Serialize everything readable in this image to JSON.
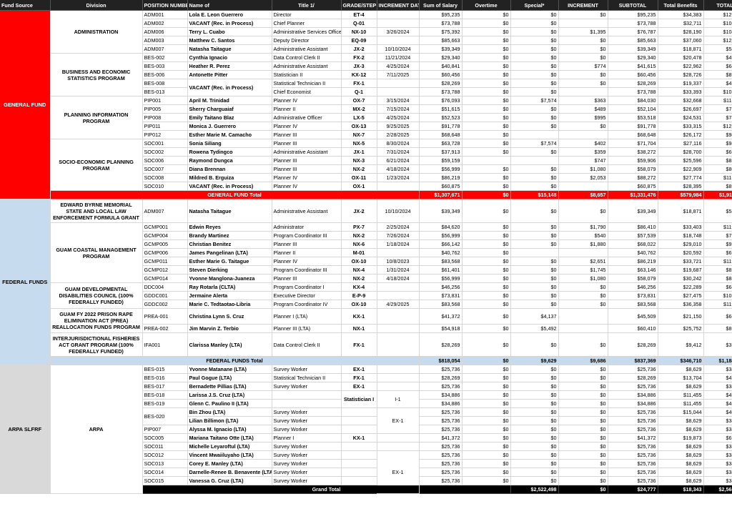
{
  "headers": {
    "fund_source": "Fund Source",
    "division": "Division",
    "position_number": "POSITION NUMBER",
    "name": "Name of",
    "title": "Title 1/",
    "grade_step": "GRADE/STEP",
    "increment_date": "INCREMENT DATE",
    "sum_salary": "Sum of Salary",
    "overtime": "Overtime",
    "special": "Special*",
    "increment": "INCREMENT",
    "subtotal": "SUBTOTAL",
    "total_benefits": "Total Benefits",
    "total": "TOTAL"
  },
  "funds": {
    "general": "GENERAL FUND",
    "federal": "FEDERAL FUNDS",
    "arpa": "ARPA SLFRF"
  },
  "divisions": {
    "admin": "ADMINISTRATION",
    "bes": "BUSINESS AND ECONOMIC STATISTICS PROGRAM",
    "pip": "PLANNING INFORMATION PROGRAM",
    "soc": "SOCIO-ECONOMIC PLANNING PROGRAM",
    "byrne": "EDWARD BYRNE MEMORIAL STATE AND LOCAL LAW ENFORCEMENT FORMULA GRANT",
    "gcmp": "GUAM COASTAL MANAGEMENT PROGRAM",
    "gddc": "GUAM DEVELOPMENTAL DISABILITIES COUNCIL (100% FEDERALLY FUNDED)",
    "prea": "GUAM FY 2022 PRISON RAPE ELIMINATION ACT (PREA) REALLOCATION FUNDS PROGRAM",
    "ifa": "INTERJURISDICTIONAL FISHERIES ACT GRANT PROGRAM (100% FEDERALLY FUNDED)",
    "arpa": "ARPA"
  },
  "merged": {
    "vacant_bes": "VACANT (Rec. in Process)",
    "statistician_i": "Statistician I",
    "grade_i1": "I-1",
    "grade_ex1_a": "EX-1",
    "grade_ex1_b": "EX-1"
  },
  "rows": [
    [
      "ADM001",
      "Lola E. Leon Guerrero",
      "Director",
      "ET-4",
      "",
      "$95,235",
      "$0",
      "$0",
      "$0",
      "$95,235",
      "$34,383",
      "$129,618"
    ],
    [
      "ADM002",
      "VACANT (Rec. in Process)",
      "Chief Planner",
      "Q-01",
      "",
      "$73,788",
      "$0",
      "$0",
      "",
      "$73,788",
      "$32,711",
      "$106,499"
    ],
    [
      "ADM006",
      "Terry L. Cuabo",
      "Administrative Services Officer",
      "NX-10",
      "3/26/2024",
      "$75,392",
      "$0",
      "$0",
      "$1,395",
      "$76,787",
      "$28,190",
      "$104,977"
    ],
    [
      "ADM003",
      "Matthew C. Santos",
      "Deputy Director",
      "EQ-09",
      "",
      "$85,663",
      "$0",
      "$0",
      "$0",
      "$85,663",
      "$37,060",
      "$122,723"
    ],
    [
      "ADM007",
      "Natasha Taitague",
      "Administrative Assistant",
      "JX-2",
      "10/10/2024",
      "$39,349",
      "$0",
      "$0",
      "$0",
      "$39,349",
      "$18,871",
      "$58,220"
    ],
    [
      "BES-002",
      "Cynthia Ignacio",
      "Data Control Clerk II",
      "FX-2",
      "11/21/2024",
      "$29,340",
      "$0",
      "$0",
      "$0",
      "$29,340",
      "$20,478",
      "$49,818"
    ],
    [
      "BES-003",
      "Heather R. Perez",
      "Administrative Assistant",
      "JX-3",
      "4/25/2024",
      "$40,841",
      "$0",
      "$0",
      "$774",
      "$41,615",
      "$22,962",
      "$64,577"
    ],
    [
      "BES-006",
      "Antonette Pitter",
      "Statistician II",
      "KX-12",
      "7/11/2025",
      "$60,456",
      "$0",
      "$0",
      "$0",
      "$60,456",
      "$28,726",
      "$89,182"
    ],
    [
      "BES-008",
      "",
      "Statistical Technician II",
      "FX-1",
      "",
      "$28,269",
      "$0",
      "$0",
      "$0",
      "$28,269",
      "$19,337",
      "$47,606"
    ],
    [
      "BES-013",
      "",
      "Chief Economist",
      "Q-1",
      "",
      "$73,788",
      "$0",
      "$0",
      "",
      "$73,788",
      "$33,393",
      "$107,181"
    ],
    [
      "PIP001",
      "April M. Trinidad",
      "Planner IV",
      "OX-7",
      "3/15/2024",
      "$76,093",
      "$0",
      "$7,574",
      "$363",
      "$84,030",
      "$32,668",
      "$116,698"
    ],
    [
      "PIP005",
      "Sherry Charguaiaf",
      "Planner II",
      "MX-2",
      "7/15/2024",
      "$51,615",
      "$0",
      "$0",
      "$489",
      "$52,104",
      "$26,697",
      "$78,801"
    ],
    [
      "PIP008",
      "Emily Taitano Blaz",
      "Administrative Officer",
      "LX-5",
      "4/25/2024",
      "$52,523",
      "$0",
      "$0",
      "$995",
      "$53,518",
      "$24,531",
      "$78,049"
    ],
    [
      "PIP011",
      "Monica J. Guerrero",
      "Planner IV",
      "OX-13",
      "9/25/2025",
      "$91,778",
      "$0",
      "$0",
      "$0",
      "$91,778",
      "$33,315",
      "$125,093"
    ],
    [
      "PIP012",
      "Esther Marie M. Camacho",
      "Planner III",
      "NX-7",
      "2/28/2025",
      "$68,648",
      "$0",
      "",
      "",
      "$68,648",
      "$26,172",
      "$94,820"
    ],
    [
      "SOC001",
      "Sonia Siliang",
      "Planner III",
      "NX-5",
      "8/30/2024",
      "$63,728",
      "$0",
      "$7,574",
      "$402",
      "$71,704",
      "$27,116",
      "$98,820"
    ],
    [
      "SOC002",
      "Rowena Tydingco",
      "Administrative Assistant",
      "JX-1",
      "7/31/2024",
      "$37,913",
      "$0",
      "$0",
      "$359",
      "$38,272",
      "$28,700",
      "$66,972"
    ],
    [
      "SOC006",
      "Raymond Dungca",
      "Planner III",
      "NX-3",
      "6/21/2024",
      "$59,159",
      "",
      "",
      "$747",
      "$59,906",
      "$25,596",
      "$85,502"
    ],
    [
      "SOC007",
      "Diana Brennan",
      "Planner III",
      "NX-2",
      "4/18/2024",
      "$56,999",
      "$0",
      "$0",
      "$1,080",
      "$58,079",
      "$22,909",
      "$80,988"
    ],
    [
      "SOC008",
      "Mildred B. Erguiza",
      "Planner IV",
      "OX-11",
      "1/23/2024",
      "$86,219",
      "$0",
      "$0",
      "$2,053",
      "$88,272",
      "$27,774",
      "$116,046"
    ],
    [
      "SOC010",
      "VACANT (Rec. in Process)",
      "Planner IV",
      "OX-1",
      "",
      "$60,875",
      "$0",
      "$0",
      "",
      "$60,875",
      "$28,395",
      "$89,270"
    ],
    [
      "ADM007",
      "Natasha Taitague",
      "Administrative Assistant",
      "JX-2",
      "10/10/2024",
      "$39,349",
      "$0",
      "$0",
      "$0",
      "$39,349",
      "$18,871",
      "$58,220"
    ],
    [
      "GCMP001",
      "Edwin Reyes",
      "Administrator",
      "PX-7",
      "2/25/2024",
      "$84,620",
      "$0",
      "$0",
      "$1,790",
      "$86,410",
      "$33,403",
      "$119,813"
    ],
    [
      "GCMP004",
      "Brandy Martinez",
      "Program Coordinator III",
      "NX-2",
      "7/26/2024",
      "$56,999",
      "$0",
      "$0",
      "$540",
      "$57,539",
      "$18,748",
      "$76,287"
    ],
    [
      "GCMP005",
      "Christian Benitez",
      "Planner III",
      "NX-6",
      "1/18/2024",
      "$66,142",
      "$0",
      "$0",
      "$1,880",
      "$68,022",
      "$29,010",
      "$97,032"
    ],
    [
      "GCMP006",
      "James Pangelinan (LTA)",
      "Planner II",
      "M-01",
      "",
      "$40,762",
      "$0",
      "",
      "",
      "$40,762",
      "$20,592",
      "$61,354"
    ],
    [
      "GCMP011",
      "Esther Marie G. Taitague",
      "Planner IV",
      "OX-10",
      "10/8/2023",
      "$83,568",
      "$0",
      "$0",
      "$2,651",
      "$86,219",
      "$33,721",
      "$119,940"
    ],
    [
      "GCMP012",
      "Steven Dierking",
      "Program Coordinator III",
      "NX-4",
      "1/31/2024",
      "$61,401",
      "$0",
      "$0",
      "$1,745",
      "$63,146",
      "$19,687",
      "$82,833"
    ],
    [
      "GCMP014",
      "Yvonne Manglona-Juaneza",
      "Planner III",
      "NX-2",
      "4/18/2024",
      "$56,999",
      "$0",
      "$0",
      "$1,080",
      "$58,079",
      "$30,242",
      "$88,321"
    ],
    [
      "DDC004",
      "Ray Rotarla (CLTA)",
      "Program Coordinator I",
      "KX-4",
      "",
      "$46,256",
      "$0",
      "$0",
      "$0",
      "$46,256",
      "$22,289",
      "$68,545"
    ],
    [
      "GDDC001",
      "Jermaine Alerta",
      "Executive Director",
      "E-P-9",
      "",
      "$73,831",
      "$0",
      "$0",
      "$0",
      "$73,831",
      "$27,475",
      "$101,306"
    ],
    [
      "GDDC002",
      "Marie C. Tedtaotao-Libria",
      "Program Coordinator IV",
      "OX-10",
      "4/29/2025",
      "$83,568",
      "$0",
      "$0",
      "$0",
      "$83,568",
      "$36,358",
      "$119,926"
    ],
    [
      "PREA-001",
      "Christina Lynn S. Cruz",
      "Planner I (LTA)",
      "KX-1",
      "",
      "$41,372",
      "$0",
      "$4,137",
      "",
      "$45,509",
      "$21,150",
      "$66,659"
    ],
    [
      "PREA-002",
      "Jim Marvin Z. Terbio",
      "Planner III (LTA)",
      "NX-1",
      "",
      "$54,918",
      "$0",
      "$5,492",
      "",
      "$60,410",
      "$25,752",
      "$86,162"
    ],
    [
      "IFA001",
      "Clarissa Manley (LTA)",
      "Data Control Clerk II",
      "FX-1",
      "",
      "$28,269",
      "$0",
      "$0",
      "$0",
      "$28,269",
      "$9,412",
      "$37,681"
    ],
    [
      "BES-015",
      "Yvonne Matanane (LTA)",
      "Survey Worker",
      "EX-1",
      "",
      "$25,736",
      "$0",
      "$0",
      "$0",
      "$25,736",
      "$8,629",
      "$34,365"
    ],
    [
      "BES-016",
      "Paul Gogue (LTA)",
      "Statistical Technician II",
      "FX-1",
      "",
      "$28,269",
      "$0",
      "$0",
      "$0",
      "$28,269",
      "$13,704",
      "$41,973"
    ],
    [
      "BES-017",
      "Bernadette Pillias (LTA)",
      "Survey Worker",
      "EX-1",
      "",
      "$25,736",
      "$0",
      "$0",
      "$0",
      "$25,736",
      "$8,629",
      "$34,365"
    ],
    [
      "BES-018",
      "Larissa J.S. Cruz (LTA)",
      "",
      "",
      "",
      "$34,886",
      "$0",
      "$0",
      "$0",
      "$34,886",
      "$11,455",
      "$46,341"
    ],
    [
      "BES-019",
      "Glenn C. Paulino II (LTA)",
      "",
      "",
      "",
      "$34,886",
      "$0",
      "$0",
      "$0",
      "$34,886",
      "$11,455",
      "$46,341"
    ],
    [
      "",
      "Bin Zhou (LTA)",
      "Survey Worker",
      "",
      "",
      "$25,736",
      "$0",
      "$0",
      "$0",
      "$25,736",
      "$15,044",
      "$40,780"
    ],
    [
      "",
      "Lilian Billimon (LTA)",
      "Survey Worker",
      "",
      "",
      "$25,736",
      "$0",
      "$0",
      "$0",
      "$25,736",
      "$8,629",
      "$34,365"
    ],
    [
      "PIP007",
      "Alyssa M. Ignacio (LTA)",
      "Survey Worker",
      "",
      "",
      "$25,736",
      "$0",
      "$0",
      "$0",
      "$25,736",
      "$8,629",
      "$34,365"
    ],
    [
      "SOC005",
      "Mariana Taitano Otte (LTA)",
      "Planner I",
      "KX-1",
      "",
      "$41,372",
      "$0",
      "$0",
      "$0",
      "$41,372",
      "$19,873",
      "$61,245"
    ],
    [
      "SOC011",
      "Michelle Leyaroftul (LTA)",
      "Survey Worker",
      "",
      "",
      "$25,736",
      "$0",
      "$0",
      "$0",
      "$25,736",
      "$8,629",
      "$34,365"
    ],
    [
      "SOC012",
      "Vincent Mwaiiluyaho (LTA)",
      "Survey Worker",
      "",
      "",
      "$25,736",
      "$0",
      "$0",
      "$0",
      "$25,736",
      "$8,629",
      "$34,365"
    ],
    [
      "SOC013",
      "Corey E. Manley (LTA)",
      "Survey Worker",
      "",
      "",
      "$25,736",
      "$0",
      "$0",
      "$0",
      "$25,736",
      "$8,629",
      "$34,365"
    ],
    [
      "SOC014",
      "Darnelle-Renee B. Benavente (LTA)",
      "Survey Worker",
      "",
      "",
      "$25,736",
      "$0",
      "$0",
      "$0",
      "$25,736",
      "$8,629",
      "$34,365"
    ],
    [
      "SOC015",
      "Vanessa G. Cruz (LTA)",
      "Survey Worker",
      "",
      "",
      "$25,736",
      "$0",
      "$0",
      "$0",
      "$25,736",
      "$8,629",
      "$34,365"
    ]
  ],
  "bes020": "BES-020",
  "totals": {
    "general": [
      "GENERAL FUND Total",
      "$1,307,671",
      "$0",
      "$15,148",
      "$8,657",
      "$1,331,476",
      "$579,984",
      "$1,911,460"
    ],
    "federal": [
      "FEDERAL FUNDS Total",
      "$818,054",
      "$0",
      "$9,629",
      "$9,686",
      "$837,369",
      "$346,710",
      "$1,184,079"
    ],
    "arpa": [
      "ARPA SLFRF Total",
      "$396,773",
      "$0",
      "$0",
      "$0",
      "$396,773",
      "$149,192",
      "$545,965"
    ],
    "grand": [
      "Grand Total",
      "$2,522,498",
      "$0",
      "$24,777",
      "$18,343",
      "$2,565,618",
      "$1,075,886",
      "$3,641,504"
    ]
  }
}
